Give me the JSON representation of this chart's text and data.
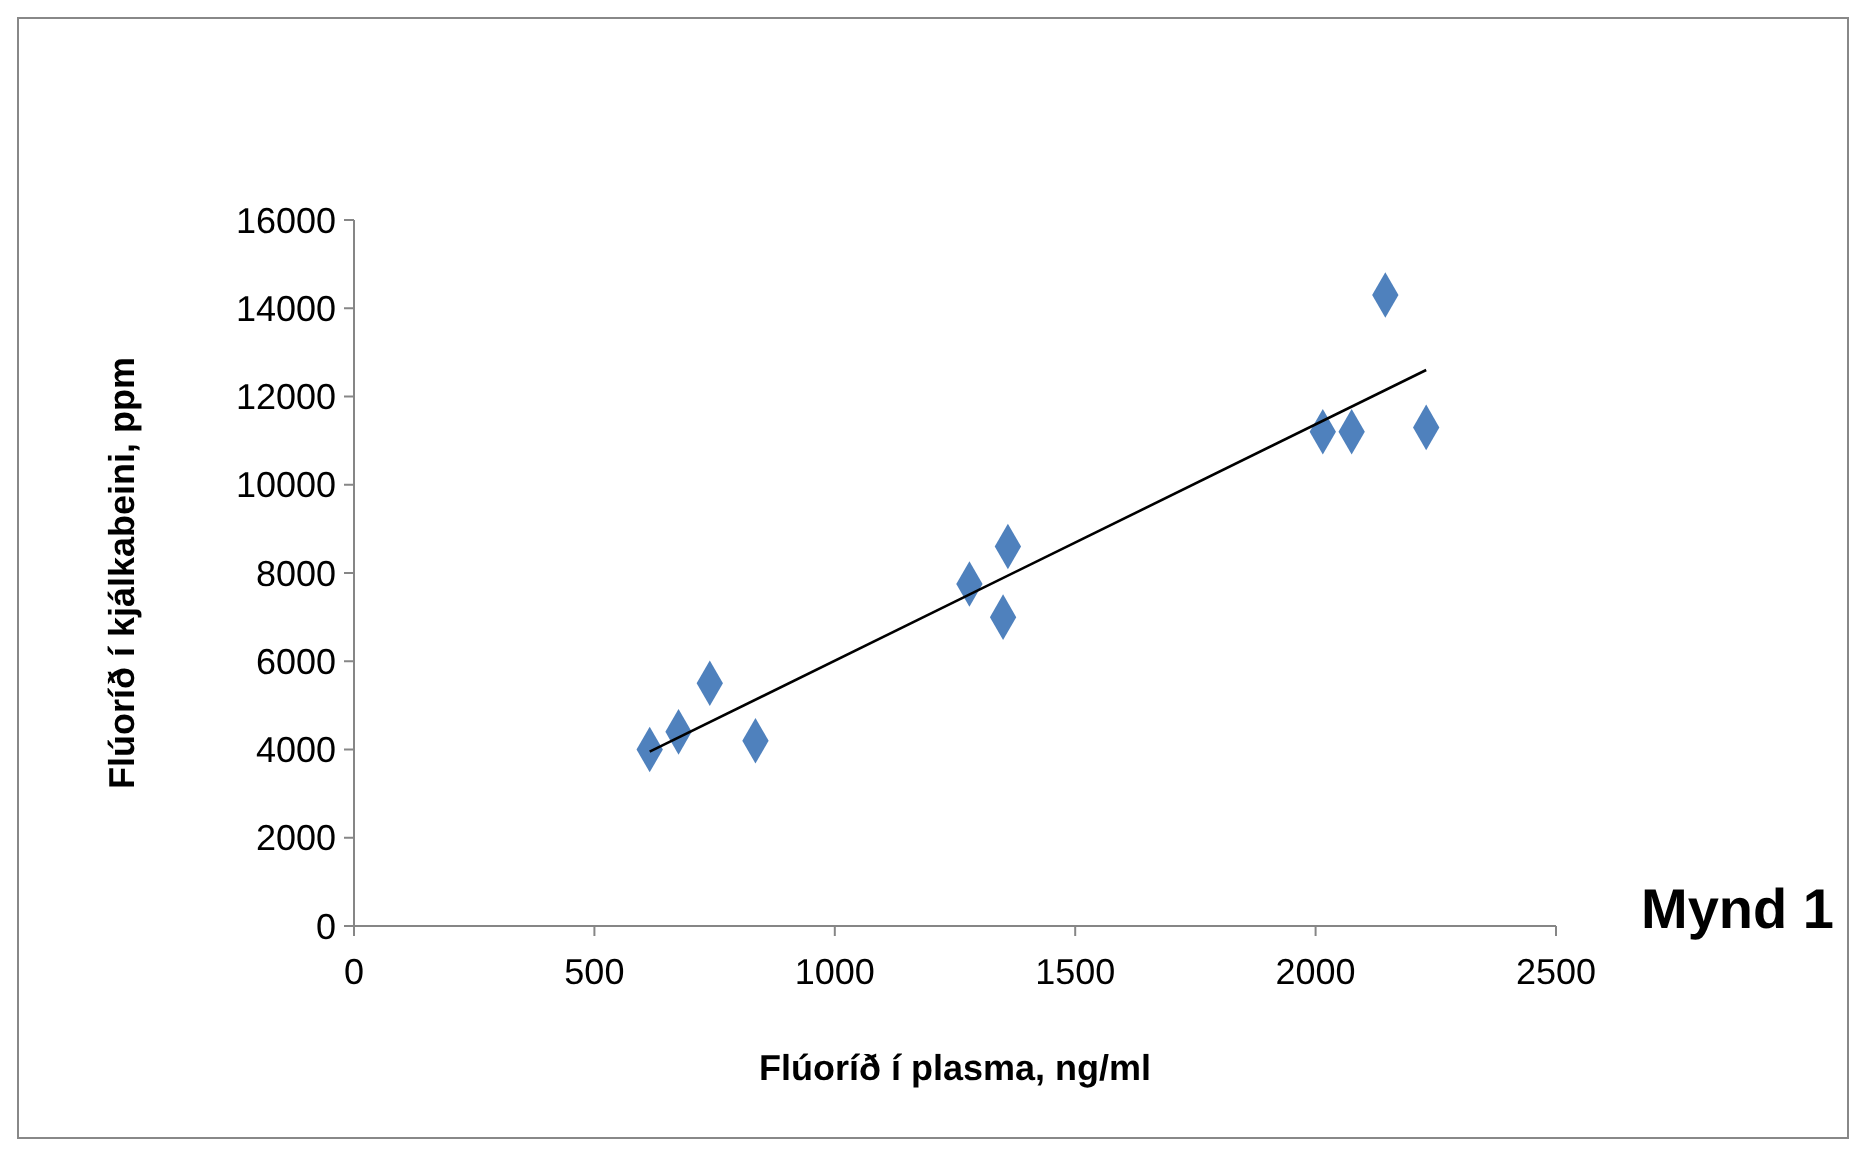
{
  "chart_data": {
    "type": "scatter",
    "xlabel": "Flúoríð í plasma, ng/ml",
    "ylabel": "Flúoríð í kjálkabeini, ppm",
    "annotations": [
      "Mynd 1"
    ],
    "xlim": [
      0,
      2500
    ],
    "xticks": [
      0,
      500,
      1000,
      1500,
      2000,
      2500
    ],
    "ylim": [
      0,
      16000
    ],
    "yticks": [
      0,
      2000,
      4000,
      6000,
      8000,
      10000,
      12000,
      14000,
      16000
    ],
    "grid": false,
    "marker": "diamond",
    "series": [
      {
        "color": "#4f81bd",
        "x": [
          615,
          675,
          740,
          835,
          1280,
          1350,
          1360,
          2015,
          2075,
          2145,
          2230
        ],
        "values": [
          4000,
          4400,
          5500,
          4200,
          7750,
          7000,
          8600,
          11200,
          11200,
          14300,
          11300
        ]
      },
      {
        "type": "line",
        "color": "#000000",
        "marker": "none",
        "line_style": "solid",
        "x": [
          615,
          2230
        ],
        "values": [
          3950,
          12600
        ]
      }
    ]
  }
}
